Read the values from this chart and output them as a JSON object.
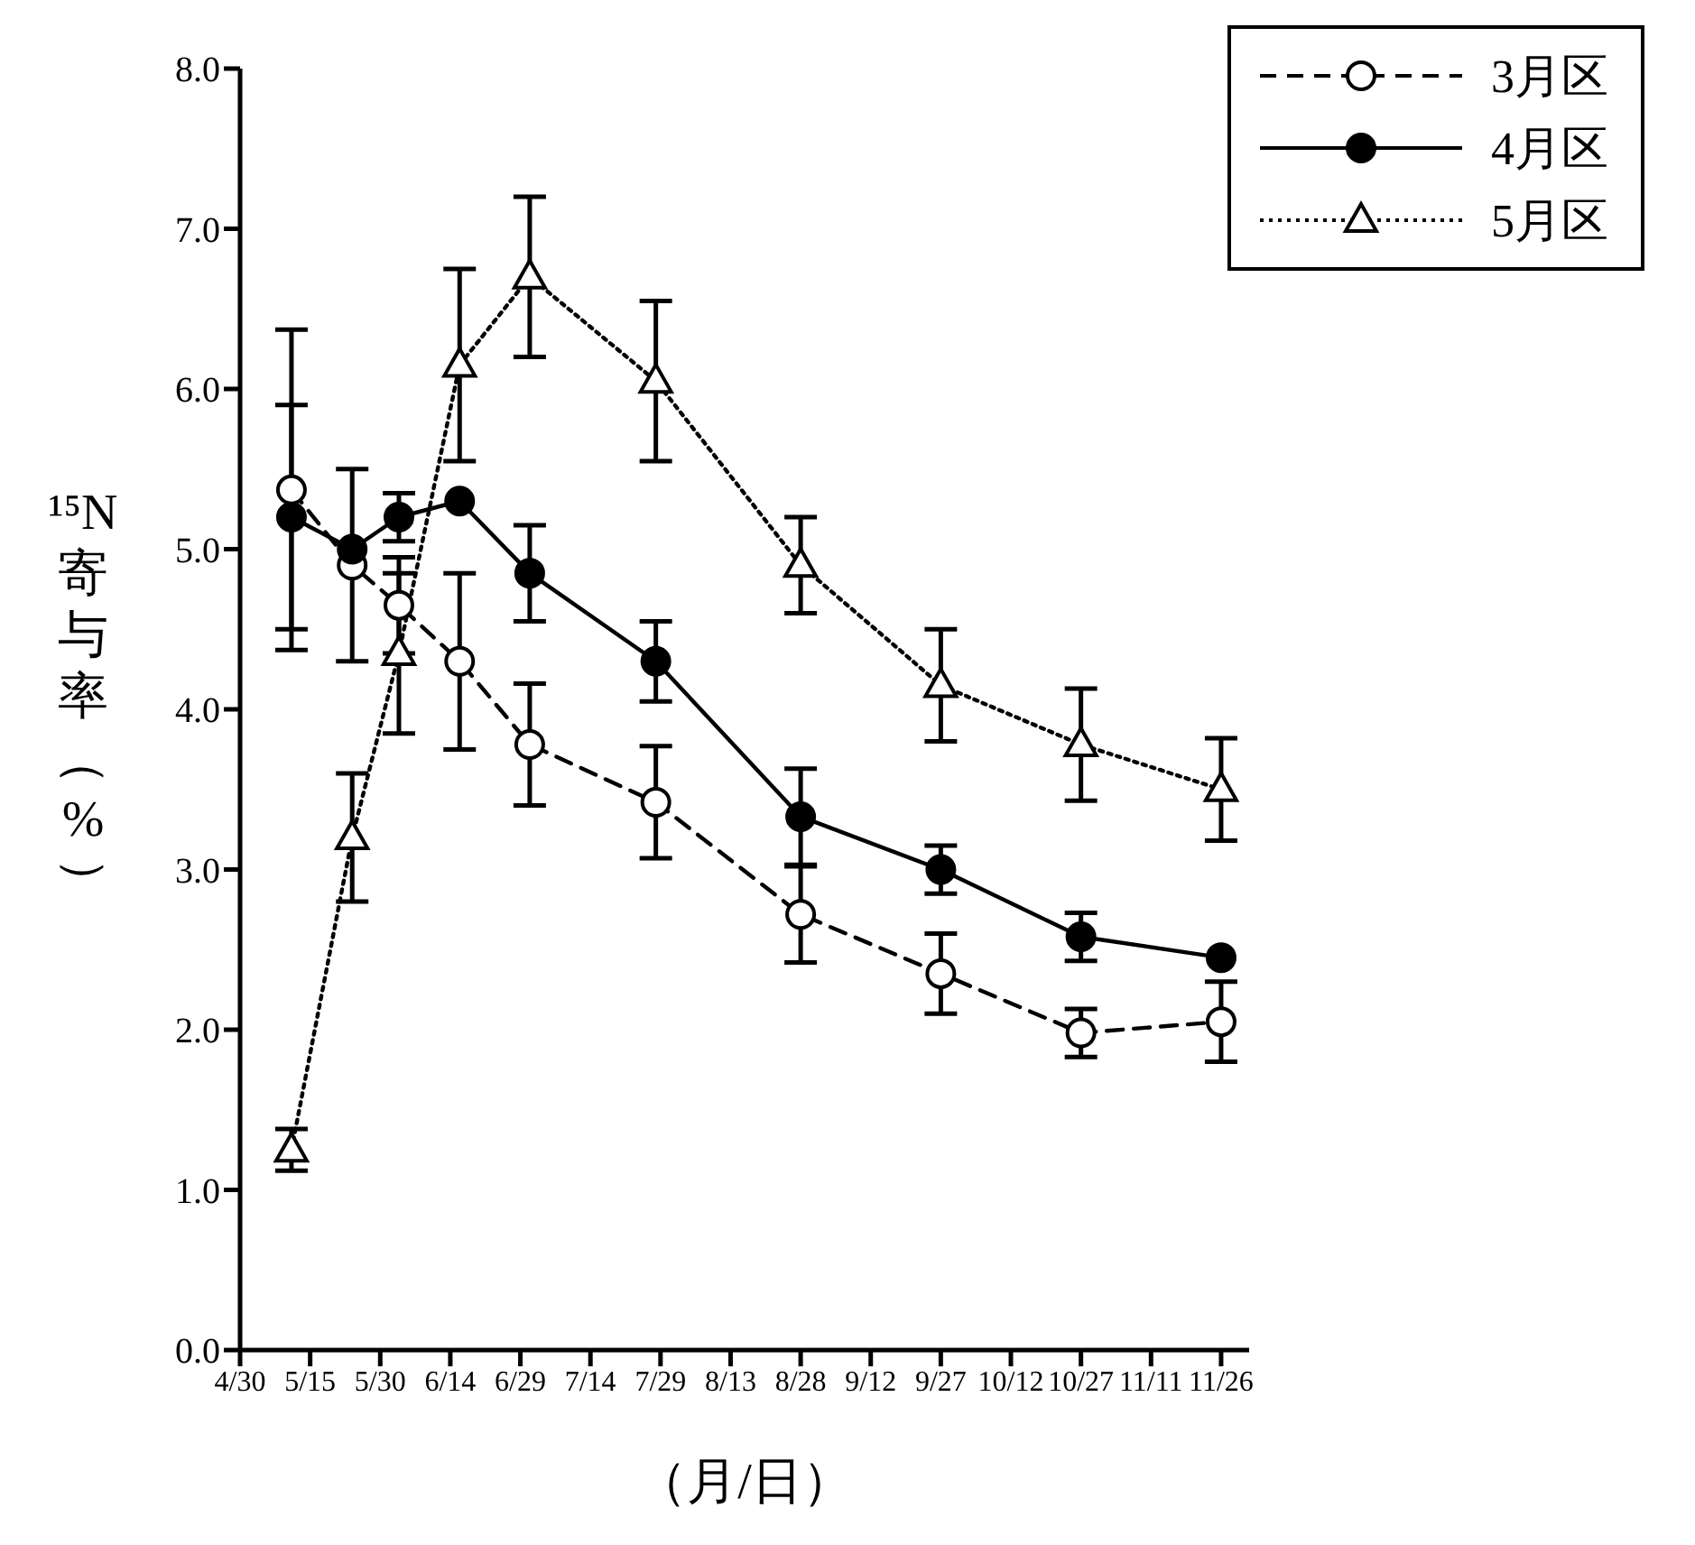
{
  "chart_data": {
    "type": "line",
    "xlabel": "（月/日）",
    "ylabel": "¹⁵N寄与率（%）",
    "xlim": [
      "--04-30",
      "--12-02"
    ],
    "xticks": [
      {
        "value": "--04-30",
        "label": "4/30"
      },
      {
        "value": "--05-15",
        "label": "5/15"
      },
      {
        "value": "--05-30",
        "label": "5/30"
      },
      {
        "value": "--06-14",
        "label": "6/14"
      },
      {
        "value": "--06-29",
        "label": "6/29"
      },
      {
        "value": "--07-14",
        "label": "7/14"
      },
      {
        "value": "--07-29",
        "label": "7/29"
      },
      {
        "value": "--08-13",
        "label": "8/13"
      },
      {
        "value": "--08-28",
        "label": "8/28"
      },
      {
        "value": "--09-12",
        "label": "9/12"
      },
      {
        "value": "--09-27",
        "label": "9/27"
      },
      {
        "value": "--10-12",
        "label": "10/12"
      },
      {
        "value": "--10-27",
        "label": "10/27"
      },
      {
        "value": "--11-11",
        "label": "11/11"
      },
      {
        "value": "--11-26",
        "label": "11/26"
      }
    ],
    "x": [
      "--05-11",
      "--05-24",
      "--06-03",
      "--06-16",
      "--07-01",
      "--07-28",
      "--08-28",
      "--09-27",
      "--10-27",
      "--11-26"
    ],
    "ylim": [
      0,
      8
    ],
    "yticks": [
      {
        "value": 0,
        "label": "0.0"
      },
      {
        "value": 1,
        "label": "1.0"
      },
      {
        "value": 2,
        "label": "2.0"
      },
      {
        "value": 3,
        "label": "3.0"
      },
      {
        "value": 4,
        "label": "4.0"
      },
      {
        "value": 5,
        "label": "5.0"
      },
      {
        "value": 6,
        "label": "6.0"
      },
      {
        "value": 7,
        "label": "7.0"
      },
      {
        "value": 8,
        "label": "8.0"
      }
    ],
    "grid": false,
    "legend": "top right",
    "series": [
      {
        "name": "3月区",
        "color": "#000000",
        "marker": "circle",
        "line_style": "dashed",
        "values": [
          5.37,
          4.9,
          4.65,
          4.3,
          3.78,
          3.42,
          2.72,
          2.35,
          1.98,
          2.05
        ],
        "errors": [
          1.0,
          0.6,
          0.3,
          0.55,
          0.38,
          0.35,
          0.3,
          0.25,
          0.15,
          0.25
        ]
      },
      {
        "name": "4月区",
        "color": "#000000",
        "marker": "circle",
        "line_style": "solid",
        "values": [
          5.2,
          5.0,
          5.2,
          5.3,
          4.85,
          4.3,
          3.33,
          3.0,
          2.58,
          2.45
        ],
        "errors": [
          0.7,
          null,
          0.15,
          null,
          0.3,
          0.25,
          0.3,
          0.15,
          0.15,
          null
        ]
      },
      {
        "name": "5月区",
        "color": "#000000",
        "marker": "triangle",
        "line_style": "dotted",
        "values": [
          1.25,
          3.2,
          4.35,
          6.15,
          6.7,
          6.05,
          4.9,
          4.15,
          3.78,
          3.5
        ],
        "errors": [
          0.13,
          0.4,
          0.5,
          0.6,
          0.5,
          0.5,
          0.3,
          0.35,
          0.35,
          0.32
        ]
      }
    ]
  }
}
